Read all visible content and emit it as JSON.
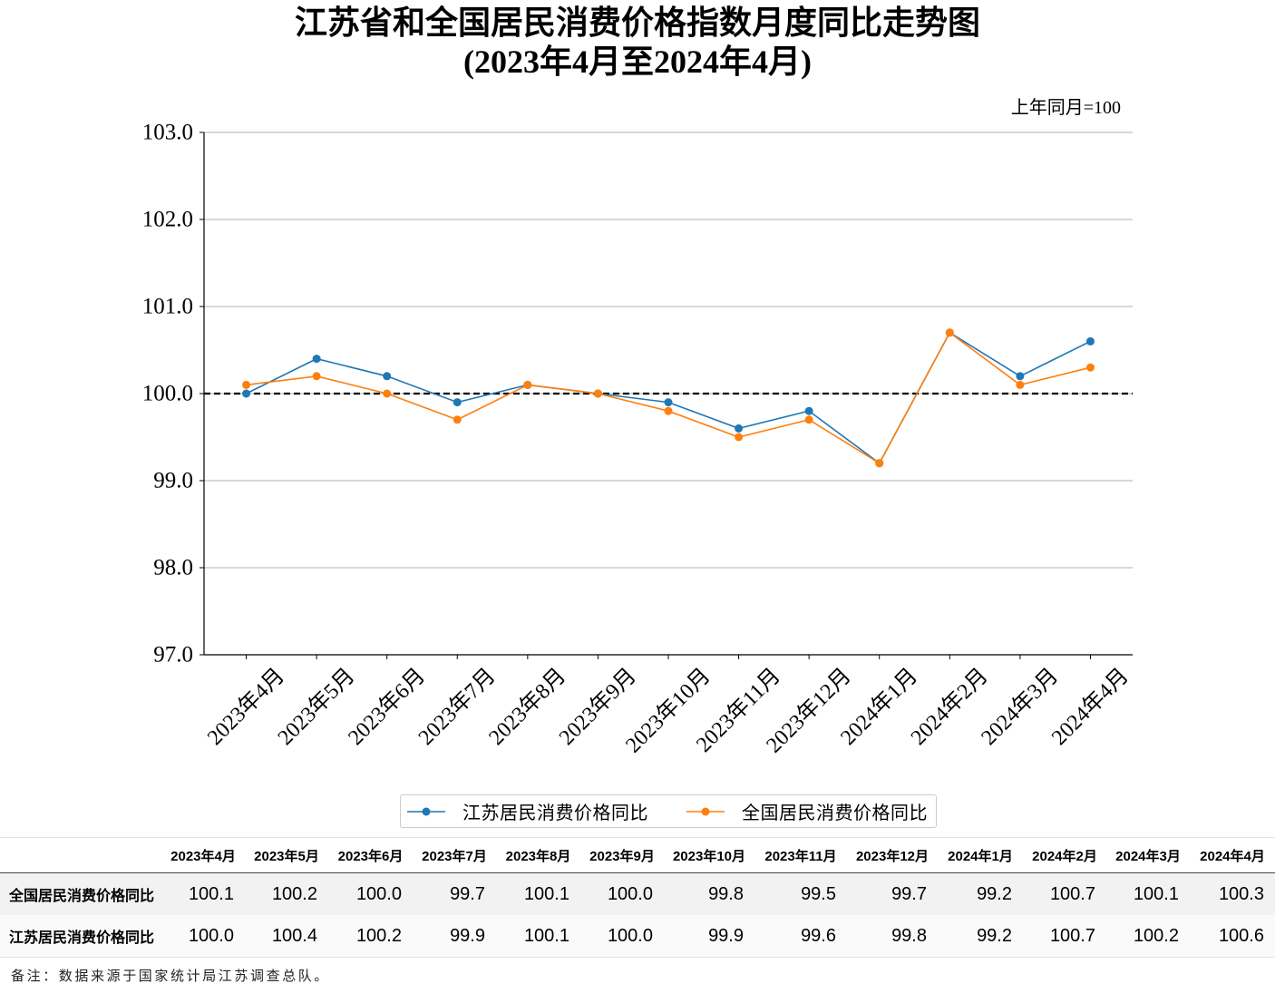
{
  "chart_data": {
    "type": "line",
    "title": "江苏省和全国居民消费价格指数月度同比走势图",
    "subtitle": "(2023年4月至2024年4月)",
    "annotation": "上年同月=100",
    "categories": [
      "2023年4月",
      "2023年5月",
      "2023年6月",
      "2023年7月",
      "2023年8月",
      "2023年9月",
      "2023年10月",
      "2023年11月",
      "2023年12月",
      "2024年1月",
      "2024年2月",
      "2024年3月",
      "2024年4月"
    ],
    "series": [
      {
        "name": "江苏居民消费价格同比",
        "color": "#1f77b4",
        "values": [
          100.0,
          100.4,
          100.2,
          99.9,
          100.1,
          100.0,
          99.9,
          99.6,
          99.8,
          99.2,
          100.7,
          100.2,
          100.6
        ]
      },
      {
        "name": "全国居民消费价格同比",
        "color": "#ff7f0e",
        "values": [
          100.1,
          100.2,
          100.0,
          99.7,
          100.1,
          100.0,
          99.8,
          99.5,
          99.7,
          99.2,
          100.7,
          100.1,
          100.3
        ]
      }
    ],
    "ylim": [
      97,
      103
    ],
    "yticks": [
      "97.0",
      "98.0",
      "99.0",
      "100.0",
      "101.0",
      "102.0",
      "103.0"
    ],
    "reference_line": 100,
    "grid": true,
    "legend": "bottom"
  },
  "table": {
    "columns": [
      "2023年4月",
      "2023年5月",
      "2023年6月",
      "2023年7月",
      "2023年8月",
      "2023年9月",
      "2023年10月",
      "2023年11月",
      "2023年12月",
      "2024年1月",
      "2024年2月",
      "2024年3月",
      "2024年4月"
    ],
    "rows": [
      {
        "label": "全国居民消费价格同比",
        "values": [
          "100.1",
          "100.2",
          "100.0",
          "99.7",
          "100.1",
          "100.0",
          "99.8",
          "99.5",
          "99.7",
          "99.2",
          "100.7",
          "100.1",
          "100.3"
        ]
      },
      {
        "label": "江苏居民消费价格同比",
        "values": [
          "100.0",
          "100.4",
          "100.2",
          "99.9",
          "100.1",
          "100.0",
          "99.9",
          "99.6",
          "99.8",
          "99.2",
          "100.7",
          "100.2",
          "100.6"
        ]
      }
    ]
  },
  "footnote": "备注：数据来源于国家统计局江苏调查总队。"
}
